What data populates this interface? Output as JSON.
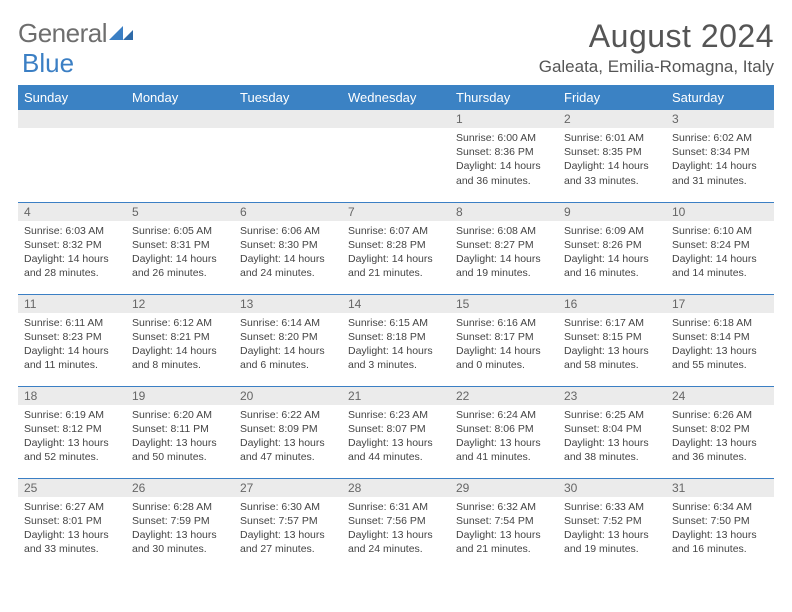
{
  "logo": {
    "text1": "General",
    "text2": "Blue"
  },
  "title": "August 2024",
  "location": "Galeata, Emilia-Romagna, Italy",
  "colors": {
    "header_bg": "#3b82c4",
    "header_text": "#ffffff",
    "daynum_bg": "#ebebeb",
    "daynum_text": "#666666",
    "body_text": "#444444",
    "border": "#3b7fc4",
    "title_text": "#555555"
  },
  "weekdays": [
    "Sunday",
    "Monday",
    "Tuesday",
    "Wednesday",
    "Thursday",
    "Friday",
    "Saturday"
  ],
  "cell_fontsize": 10.5,
  "weeks": [
    [
      null,
      null,
      null,
      null,
      {
        "d": "1",
        "sr": "6:00 AM",
        "ss": "8:36 PM",
        "dl": "14 hours and 36 minutes."
      },
      {
        "d": "2",
        "sr": "6:01 AM",
        "ss": "8:35 PM",
        "dl": "14 hours and 33 minutes."
      },
      {
        "d": "3",
        "sr": "6:02 AM",
        "ss": "8:34 PM",
        "dl": "14 hours and 31 minutes."
      }
    ],
    [
      {
        "d": "4",
        "sr": "6:03 AM",
        "ss": "8:32 PM",
        "dl": "14 hours and 28 minutes."
      },
      {
        "d": "5",
        "sr": "6:05 AM",
        "ss": "8:31 PM",
        "dl": "14 hours and 26 minutes."
      },
      {
        "d": "6",
        "sr": "6:06 AM",
        "ss": "8:30 PM",
        "dl": "14 hours and 24 minutes."
      },
      {
        "d": "7",
        "sr": "6:07 AM",
        "ss": "8:28 PM",
        "dl": "14 hours and 21 minutes."
      },
      {
        "d": "8",
        "sr": "6:08 AM",
        "ss": "8:27 PM",
        "dl": "14 hours and 19 minutes."
      },
      {
        "d": "9",
        "sr": "6:09 AM",
        "ss": "8:26 PM",
        "dl": "14 hours and 16 minutes."
      },
      {
        "d": "10",
        "sr": "6:10 AM",
        "ss": "8:24 PM",
        "dl": "14 hours and 14 minutes."
      }
    ],
    [
      {
        "d": "11",
        "sr": "6:11 AM",
        "ss": "8:23 PM",
        "dl": "14 hours and 11 minutes."
      },
      {
        "d": "12",
        "sr": "6:12 AM",
        "ss": "8:21 PM",
        "dl": "14 hours and 8 minutes."
      },
      {
        "d": "13",
        "sr": "6:14 AM",
        "ss": "8:20 PM",
        "dl": "14 hours and 6 minutes."
      },
      {
        "d": "14",
        "sr": "6:15 AM",
        "ss": "8:18 PM",
        "dl": "14 hours and 3 minutes."
      },
      {
        "d": "15",
        "sr": "6:16 AM",
        "ss": "8:17 PM",
        "dl": "14 hours and 0 minutes."
      },
      {
        "d": "16",
        "sr": "6:17 AM",
        "ss": "8:15 PM",
        "dl": "13 hours and 58 minutes."
      },
      {
        "d": "17",
        "sr": "6:18 AM",
        "ss": "8:14 PM",
        "dl": "13 hours and 55 minutes."
      }
    ],
    [
      {
        "d": "18",
        "sr": "6:19 AM",
        "ss": "8:12 PM",
        "dl": "13 hours and 52 minutes."
      },
      {
        "d": "19",
        "sr": "6:20 AM",
        "ss": "8:11 PM",
        "dl": "13 hours and 50 minutes."
      },
      {
        "d": "20",
        "sr": "6:22 AM",
        "ss": "8:09 PM",
        "dl": "13 hours and 47 minutes."
      },
      {
        "d": "21",
        "sr": "6:23 AM",
        "ss": "8:07 PM",
        "dl": "13 hours and 44 minutes."
      },
      {
        "d": "22",
        "sr": "6:24 AM",
        "ss": "8:06 PM",
        "dl": "13 hours and 41 minutes."
      },
      {
        "d": "23",
        "sr": "6:25 AM",
        "ss": "8:04 PM",
        "dl": "13 hours and 38 minutes."
      },
      {
        "d": "24",
        "sr": "6:26 AM",
        "ss": "8:02 PM",
        "dl": "13 hours and 36 minutes."
      }
    ],
    [
      {
        "d": "25",
        "sr": "6:27 AM",
        "ss": "8:01 PM",
        "dl": "13 hours and 33 minutes."
      },
      {
        "d": "26",
        "sr": "6:28 AM",
        "ss": "7:59 PM",
        "dl": "13 hours and 30 minutes."
      },
      {
        "d": "27",
        "sr": "6:30 AM",
        "ss": "7:57 PM",
        "dl": "13 hours and 27 minutes."
      },
      {
        "d": "28",
        "sr": "6:31 AM",
        "ss": "7:56 PM",
        "dl": "13 hours and 24 minutes."
      },
      {
        "d": "29",
        "sr": "6:32 AM",
        "ss": "7:54 PM",
        "dl": "13 hours and 21 minutes."
      },
      {
        "d": "30",
        "sr": "6:33 AM",
        "ss": "7:52 PM",
        "dl": "13 hours and 19 minutes."
      },
      {
        "d": "31",
        "sr": "6:34 AM",
        "ss": "7:50 PM",
        "dl": "13 hours and 16 minutes."
      }
    ]
  ],
  "labels": {
    "sunrise": "Sunrise:",
    "sunset": "Sunset:",
    "daylight": "Daylight:"
  }
}
